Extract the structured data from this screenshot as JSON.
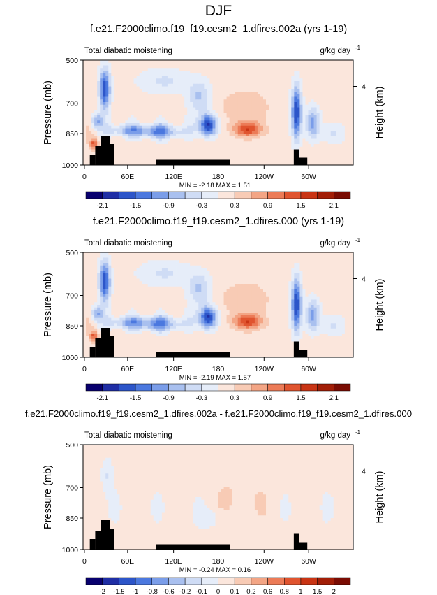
{
  "figure_title": "DJF",
  "chart_data": [
    {
      "type": "heatmap",
      "title": "f.e21.F2000climo.f19_f19.cesm2_1.dfires.002a (yrs 1-19)",
      "left_string": "Total diabatic moistening",
      "units_main": "g/kg day",
      "units_exp": "-1",
      "ylabel": "Pressure (mb)",
      "right_label": "Height (km)",
      "y_ticks": [
        "500",
        "700",
        "850",
        "1000"
      ],
      "x_ticks": [
        "0",
        "60E",
        "120E",
        "180",
        "120W",
        "60W"
      ],
      "height_ticks": [
        "4"
      ],
      "stats": "MIN = -2.18  MAX =  1.51",
      "colorbar_labels": [
        "-2.1",
        "-1.5",
        "-0.9",
        "-0.3",
        "0.3",
        "0.9",
        "1.5",
        "2.1"
      ],
      "scheme": "full"
    },
    {
      "type": "heatmap",
      "title": "f.e21.F2000climo.f19_f19.cesm2_1.dfires.000 (yrs 1-19)",
      "left_string": "Total diabatic moistening",
      "units_main": "g/kg day",
      "units_exp": "-1",
      "ylabel": "Pressure (mb)",
      "right_label": "Height (km)",
      "y_ticks": [
        "500",
        "700",
        "850",
        "1000"
      ],
      "x_ticks": [
        "0",
        "60E",
        "120E",
        "180",
        "120W",
        "60W"
      ],
      "height_ticks": [
        "4"
      ],
      "stats": "MIN = -2.19  MAX =  1.57",
      "colorbar_labels": [
        "-2.1",
        "-1.5",
        "-0.9",
        "-0.3",
        "0.3",
        "0.9",
        "1.5",
        "2.1"
      ],
      "scheme": "full"
    },
    {
      "type": "heatmap",
      "title": "f.e21.F2000climo.f19_f19.cesm2_1.dfires.002a - f.e21.F2000climo.f19_f19.cesm2_1.dfires.000",
      "left_string": "Total diabatic moistening",
      "units_main": "g/kg day",
      "units_exp": "-1",
      "ylabel": "Pressure (mb)",
      "right_label": "Height (km)",
      "y_ticks": [
        "500",
        "700",
        "850",
        "1000"
      ],
      "x_ticks": [
        "0",
        "60E",
        "120E",
        "180",
        "120W",
        "60W"
      ],
      "height_ticks": [
        "4"
      ],
      "stats": "MIN = -0.24  MAX =  0.16",
      "colorbar_labels": [
        "-2",
        "-1.5",
        "-1",
        "-0.8",
        "-0.6",
        "-0.2",
        "-0.1",
        "0",
        "0.1",
        "0.2",
        "0.6",
        "0.8",
        "1",
        "1.5",
        "2"
      ],
      "scheme": "diff"
    }
  ],
  "colors": {
    "colorbar": [
      "#08006e",
      "#1f2ea5",
      "#2c55c9",
      "#4b78df",
      "#7a9de9",
      "#a9c0ef",
      "#cfdcf5",
      "#e6edf9",
      "#fbe6dc",
      "#f8cbb5",
      "#f3a585",
      "#ec7b57",
      "#e0542f",
      "#c93414",
      "#a21e07",
      "#7a0c03"
    ],
    "topography": "#000000"
  }
}
